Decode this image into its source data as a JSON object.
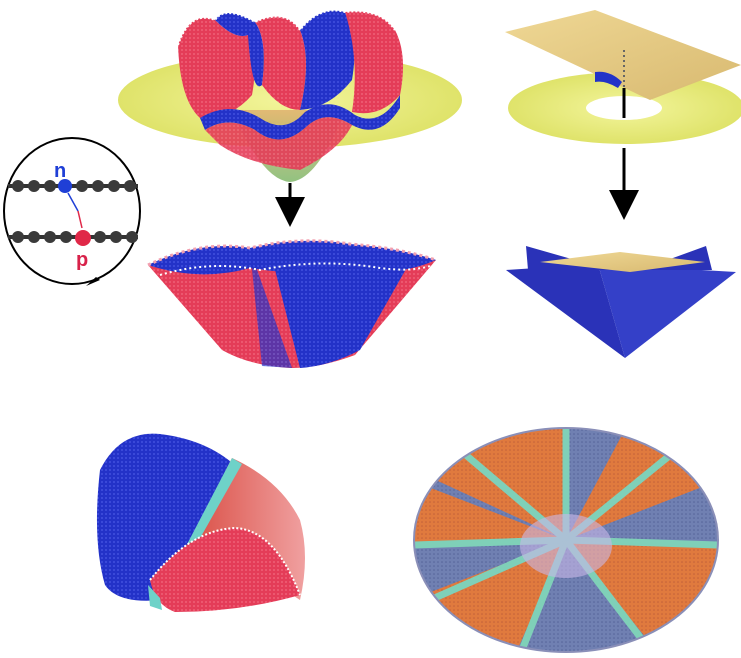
{
  "labels": {
    "n": "n",
    "p": "p"
  },
  "colors": {
    "blue": "#2233c8",
    "red": "#e0405a",
    "yellow": "#e8ec7a",
    "tan": "#e6cf88",
    "orange": "#e0783a",
    "cyan": "#5fd0c8",
    "slate": "#6f7fb0"
  },
  "panels": [
    "wavy-cone-graphene",
    "slit-sheet-cone",
    "folded-cone-ridge",
    "blue-pyramid-cone",
    "blue-red-cone-cap",
    "disclination-disk"
  ]
}
